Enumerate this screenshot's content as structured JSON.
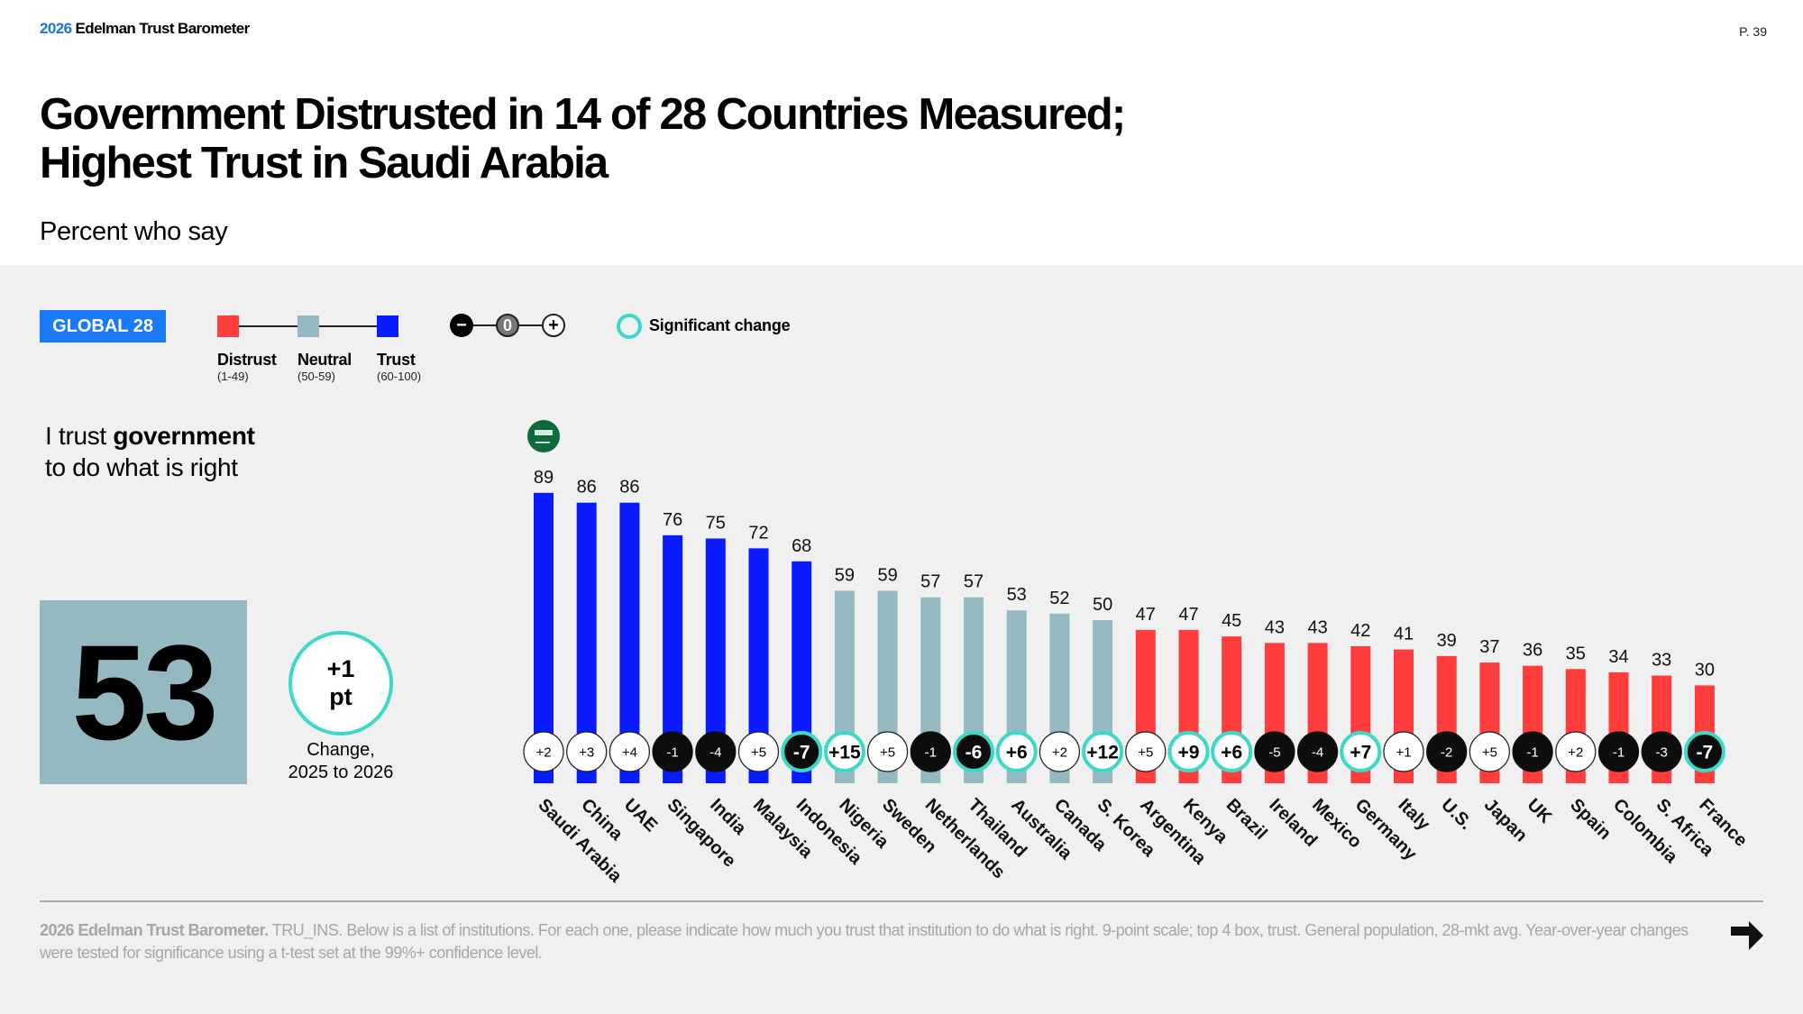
{
  "header": {
    "brand_year": "2026",
    "brand_name": "Edelman Trust Barometer",
    "page": "P. 39"
  },
  "title_line1": "Government Distrusted in 14 of 28 Countries Measured;",
  "title_line2": "Highest Trust in Saudi Arabia",
  "subtitle": "Percent who say",
  "legend": {
    "badge": "GLOBAL 28",
    "categories": [
      {
        "label": "Distrust",
        "range": "(1-49)",
        "color": "#ff3d3d"
      },
      {
        "label": "Neutral",
        "range": "(50-59)",
        "color": "#95b9c1"
      },
      {
        "label": "Trust",
        "range": "(60-100)",
        "color": "#0a1bff"
      }
    ],
    "change_scale": {
      "minus": "−",
      "zero": "0",
      "plus": "+"
    },
    "significant_label": "Significant change",
    "significant_color": "#3dd9c8"
  },
  "question": {
    "prefix": "I trust ",
    "bold": "government",
    "line2": "to do what is right"
  },
  "global": {
    "value": "53",
    "change_line1": "+1",
    "change_line2": "pt",
    "caption_line1": "Change,",
    "caption_line2": "2025 to 2026"
  },
  "chart_data": {
    "type": "bar",
    "title": "I trust government to do what is right",
    "ylabel": "Percent who say",
    "ylim": [
      0,
      100
    ],
    "grid": false,
    "top_flag": "Saudi Arabia",
    "categories": [
      "Saudi Arabia",
      "China",
      "UAE",
      "Singapore",
      "India",
      "Malaysia",
      "Indonesia",
      "Nigeria",
      "Sweden",
      "Netherlands",
      "Thailand",
      "Australia",
      "Canada",
      "S. Korea",
      "Argentina",
      "Kenya",
      "Brazil",
      "Ireland",
      "Mexico",
      "Germany",
      "Italy",
      "U.S.",
      "Japan",
      "UK",
      "Spain",
      "Colombia",
      "S. Africa",
      "France"
    ],
    "values": [
      89,
      86,
      86,
      76,
      75,
      72,
      68,
      59,
      59,
      57,
      57,
      53,
      52,
      50,
      47,
      47,
      45,
      43,
      43,
      42,
      41,
      39,
      37,
      36,
      35,
      34,
      33,
      30
    ],
    "change": [
      "+2",
      "+3",
      "+4",
      "-1",
      "-4",
      "+5",
      "-7",
      "+15",
      "+5",
      "-1",
      "-6",
      "+6",
      "+2",
      "+12",
      "+5",
      "+9",
      "+6",
      "-5",
      "-4",
      "+7",
      "+1",
      "-2",
      "+5",
      "-1",
      "+2",
      "-1",
      "-3",
      "-7"
    ],
    "significant": [
      false,
      false,
      false,
      false,
      false,
      false,
      true,
      true,
      false,
      false,
      true,
      true,
      false,
      true,
      false,
      true,
      true,
      false,
      false,
      true,
      false,
      false,
      false,
      false,
      false,
      false,
      false,
      true
    ]
  },
  "footer": {
    "source_bold": "2026 Edelman Trust Barometer.",
    "source_text": " TRU_INS. Below is a list of institutions. For each one, please indicate how much you trust that institution to do what is right. 9-point scale; top 4 box, trust. General population, 28-mkt avg. Year-over-year changes were tested for significance using a t-test set at the 99%+ confidence level."
  }
}
